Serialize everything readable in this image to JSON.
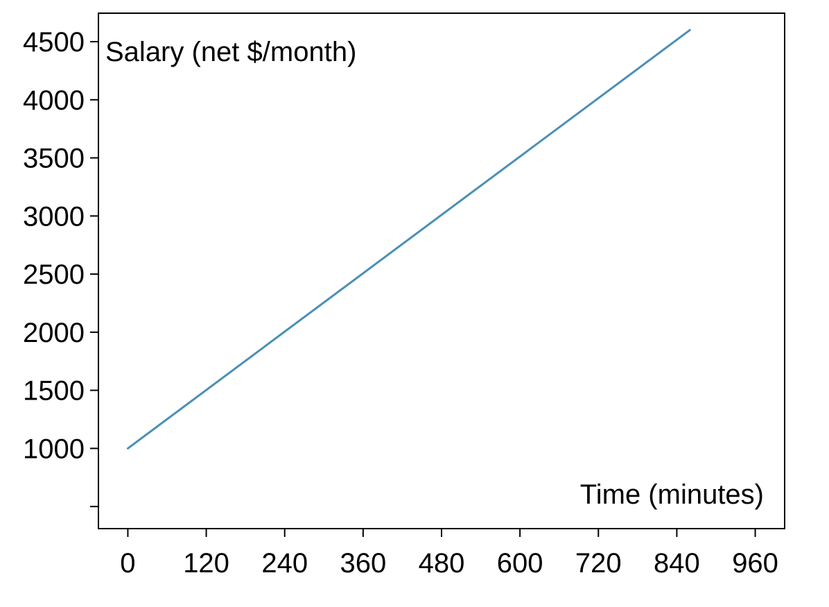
{
  "chart_data": {
    "type": "line",
    "title": "",
    "xlabel": "Time (minutes)",
    "ylabel": "Salary (net $/month)",
    "x_ticks": [
      0,
      120,
      240,
      360,
      480,
      600,
      720,
      840,
      960
    ],
    "y_ticks": [
      500,
      1000,
      1500,
      2000,
      2500,
      3000,
      3500,
      4000,
      4500
    ],
    "y_tick_labels": [
      "",
      "1000",
      "1500",
      "2000",
      "2500",
      "3000",
      "3500",
      "4000",
      "4500"
    ],
    "xlim": [
      -45,
      1005
    ],
    "ylim": [
      310,
      4745
    ],
    "grid": false,
    "legend": "none",
    "series": [
      {
        "x": [
          0,
          860
        ],
        "y": [
          1000,
          4600
        ],
        "color": "#4a8fb5"
      }
    ]
  }
}
